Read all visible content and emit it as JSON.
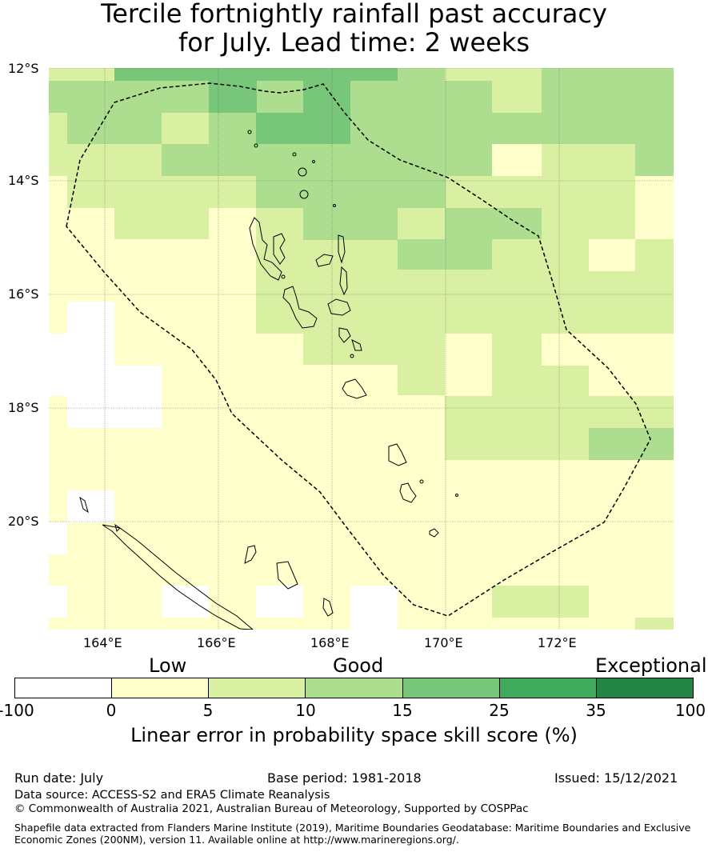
{
  "title": {
    "line1": "Tercile fortnightly rainfall past accuracy",
    "line2": "for July. Lead time: 2 weeks"
  },
  "map": {
    "lat_labels": [
      "12°S",
      "14°S",
      "16°S",
      "18°S",
      "20°S"
    ],
    "lon_labels": [
      "164°E",
      "166°E",
      "168°E",
      "170°E",
      "172°E"
    ],
    "extent": {
      "lon": [
        163.0,
        174.0
      ],
      "lat": [
        -12.0,
        -21.9
      ]
    },
    "palette": {
      "nodata": "#ffffff",
      "0-5": "#ffffcc",
      "5-10": "#d9f0a3",
      "10-15": "#addd8e",
      "15-25": "#78c679",
      "25-35": "#41ab5d",
      "35-100": "#238443"
    }
  },
  "legend": {
    "categories": [
      "Low",
      "Good",
      "Exceptional"
    ],
    "ticks": [
      "-100",
      "0",
      "5",
      "10",
      "15",
      "25",
      "35",
      "100"
    ],
    "colors": [
      "#ffffff",
      "#ffffcc",
      "#d9f0a3",
      "#addd8e",
      "#78c679",
      "#41ab5d",
      "#238443"
    ],
    "label": "Linear error in probability space skill score (%)"
  },
  "footer": {
    "run_date": "Run date: July",
    "base_period": "Base period: 1981-2018",
    "issued": "Issued: 15/12/2021",
    "data_source": "Data source: ACCESS-S2 and ERA5 Climate Reanalysis",
    "copyright": "© Commonwealth of Australia 2021, Australian Bureau of Meteorology, Supported by COSPPac",
    "shapefile_line1": "Shapefile data extracted from Flanders Marine Institute (2019), Maritime Boundaries Geodatabase: Maritime Boundaries and Exclusive",
    "shapefile_line2": "Economic Zones (200NM), version 11. Available online at http://www.marineregions.org/."
  }
}
